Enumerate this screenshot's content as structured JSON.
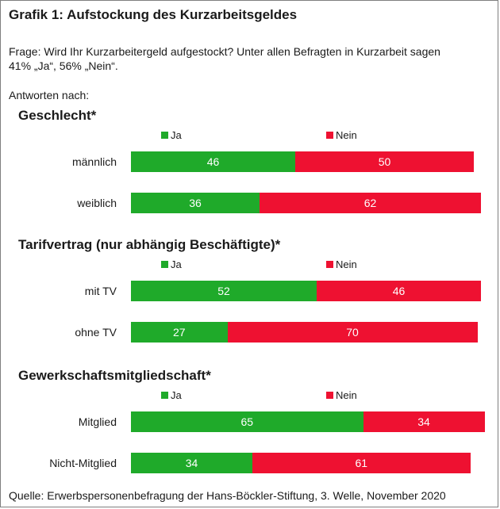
{
  "title": "Grafik 1: Aufstockung des Kurzarbeitsgeldes",
  "question_line1": "Frage: Wird Ihr Kurzarbeitergeld aufgestockt? Unter allen Befragten in Kurzarbeit sagen",
  "question_line2": "41% „Ja“, 56% „Nein“.",
  "intro": "Antworten nach:",
  "source": "Quelle: Erwerbspersonenbefragung der Hans-Böckler-Stiftung, 3. Welle, November 2020",
  "colors": {
    "ja": "#1faa2a",
    "nein": "#ee1131"
  },
  "chart_data": [
    {
      "type": "bar",
      "stacked": true,
      "orientation": "horizontal",
      "title": "Geschlecht*",
      "categories": [
        "männlich",
        "weiblich"
      ],
      "series": [
        {
          "name": "Ja",
          "values": [
            46,
            36
          ]
        },
        {
          "name": "Nein",
          "values": [
            50,
            62
          ]
        }
      ],
      "xlim": [
        0,
        100
      ],
      "legend": "top"
    },
    {
      "type": "bar",
      "stacked": true,
      "orientation": "horizontal",
      "title": "Tarifvertrag (nur abhängig Beschäftigte)*",
      "categories": [
        "mit TV",
        "ohne TV"
      ],
      "series": [
        {
          "name": "Ja",
          "values": [
            52,
            27
          ]
        },
        {
          "name": "Nein",
          "values": [
            46,
            70
          ]
        }
      ],
      "xlim": [
        0,
        100
      ],
      "legend": "top"
    },
    {
      "type": "bar",
      "stacked": true,
      "orientation": "horizontal",
      "title": "Gewerkschaftsmitgliedschaft*",
      "categories": [
        "Mitglied",
        "Nicht-Mitglied"
      ],
      "series": [
        {
          "name": "Ja",
          "values": [
            65,
            34
          ]
        },
        {
          "name": "Nein",
          "values": [
            34,
            61
          ]
        }
      ],
      "xlim": [
        0,
        100
      ],
      "legend": "top"
    }
  ]
}
